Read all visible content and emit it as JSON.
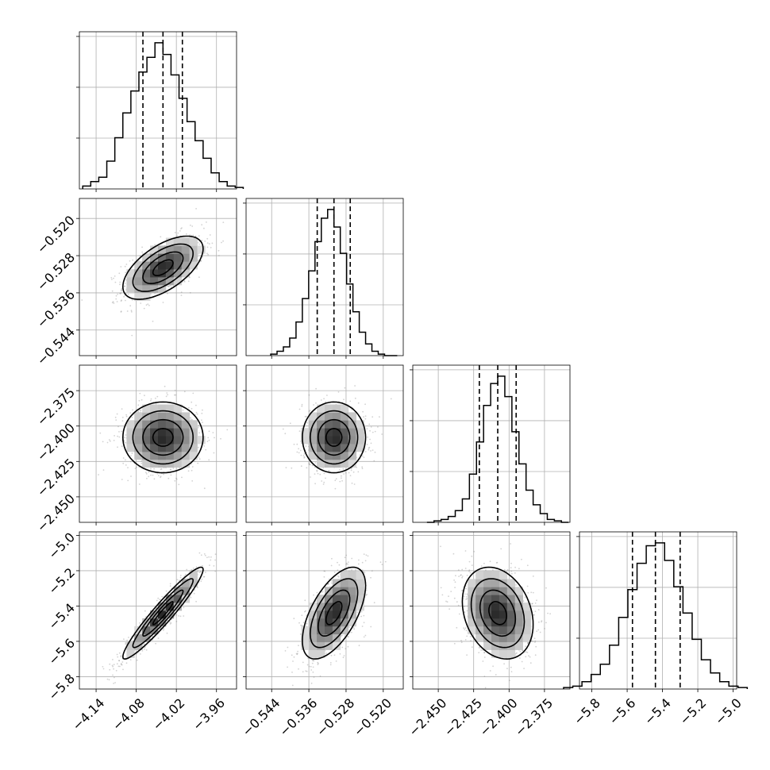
{
  "figure": {
    "type": "corner-plot"
  },
  "chart_data": {
    "type": "corner",
    "grid": true,
    "colors": {
      "line": "#000000",
      "grid": "#b0b0b0",
      "scatter": "#7f7f7f"
    },
    "parameters": [
      {
        "index": 0,
        "mean": -4.04,
        "std": 0.03,
        "range": [
          -4.165,
          -3.93
        ],
        "ticks": [
          -4.14,
          -4.08,
          -4.02,
          -3.96
        ],
        "tick_labels": [
          "−4.14",
          "−4.08",
          "−4.02",
          "−3.96"
        ],
        "quantiles": [
          -4.07,
          -4.04,
          -4.011
        ]
      },
      {
        "index": 1,
        "mean": -0.5306,
        "std": 0.0034,
        "range": [
          -0.5495,
          -0.5157
        ],
        "ticks": [
          -0.544,
          -0.536,
          -0.528,
          -0.52
        ],
        "tick_labels": [
          "−0.544",
          "−0.536",
          "−0.528",
          "−0.520"
        ],
        "quantiles": [
          -0.5342,
          -0.5306,
          -0.5271
        ]
      },
      {
        "index": 2,
        "mean": -2.408,
        "std": 0.0125,
        "range": [
          -2.468,
          -2.357
        ],
        "ticks": [
          -2.45,
          -2.425,
          -2.4,
          -2.375
        ],
        "tick_labels": [
          "−2.450",
          "−2.425",
          "−2.400",
          "−2.375"
        ],
        "quantiles": [
          -2.421,
          -2.408,
          -2.395
        ]
      },
      {
        "index": 3,
        "mean": -5.44,
        "std": 0.13,
        "range": [
          -5.87,
          -4.98
        ],
        "ticks": [
          -5.8,
          -5.6,
          -5.4,
          -5.2,
          -5.0
        ],
        "tick_labels": [
          "−5.8",
          "−5.6",
          "−5.4",
          "−5.2",
          "−5.0"
        ],
        "quantiles": [
          -5.57,
          -5.44,
          -5.3
        ]
      }
    ],
    "correlations": [
      {
        "pair": [
          0,
          1
        ],
        "rho": 0.6
      },
      {
        "pair": [
          0,
          2
        ],
        "rho": 0.0
      },
      {
        "pair": [
          1,
          2
        ],
        "rho": 0.0
      },
      {
        "pair": [
          0,
          3
        ],
        "rho": 0.95
      },
      {
        "pair": [
          1,
          3
        ],
        "rho": 0.6
      },
      {
        "pair": [
          2,
          3
        ],
        "rho": -0.25
      }
    ],
    "histograms": {
      "bins": 20,
      "heights": [
        [
          0.02,
          0.05,
          0.08,
          0.19,
          0.35,
          0.52,
          0.67,
          0.8,
          0.9,
          1.0,
          0.92,
          0.78,
          0.62,
          0.46,
          0.33,
          0.21,
          0.11,
          0.05,
          0.02,
          0.01
        ],
        [
          0.01,
          0.03,
          0.06,
          0.12,
          0.23,
          0.39,
          0.58,
          0.78,
          0.94,
          1.0,
          0.88,
          0.7,
          0.49,
          0.3,
          0.16,
          0.08,
          0.03,
          0.01,
          0.0,
          0.0
        ],
        [
          0.0,
          0.01,
          0.02,
          0.04,
          0.08,
          0.16,
          0.33,
          0.55,
          0.8,
          0.95,
          1.0,
          0.86,
          0.62,
          0.4,
          0.22,
          0.12,
          0.06,
          0.02,
          0.01,
          0.0
        ],
        [
          0.01,
          0.02,
          0.05,
          0.1,
          0.17,
          0.3,
          0.49,
          0.68,
          0.86,
          0.98,
          1.0,
          0.88,
          0.7,
          0.52,
          0.34,
          0.2,
          0.11,
          0.05,
          0.02,
          0.01
        ]
      ]
    }
  }
}
